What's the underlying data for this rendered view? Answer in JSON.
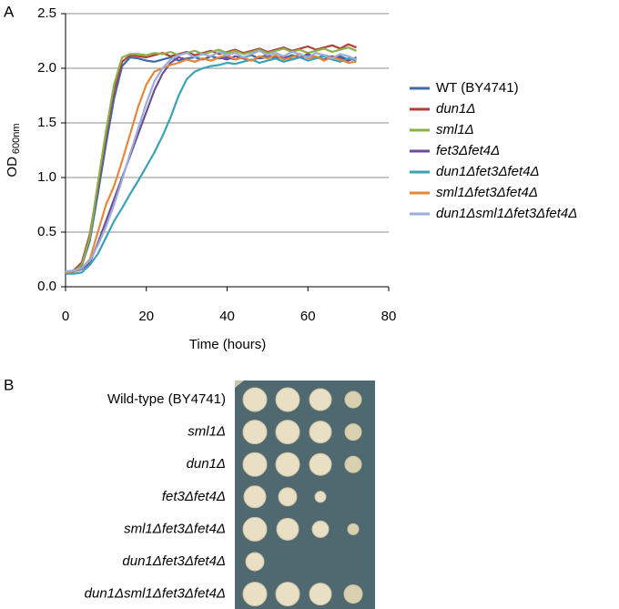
{
  "chart_data": {
    "type": "line",
    "panel_label": "A",
    "xlabel": "Time (hours)",
    "ylabel": "OD",
    "ylabel_subscript": "600nm",
    "x": [
      0,
      2,
      4,
      6,
      8,
      10,
      12,
      14,
      16,
      18,
      20,
      22,
      24,
      26,
      28,
      30,
      32,
      34,
      36,
      38,
      40,
      42,
      44,
      46,
      48,
      50,
      52,
      54,
      56,
      58,
      60,
      62,
      64,
      66,
      68,
      70,
      72
    ],
    "xlim": [
      0,
      80
    ],
    "xticks": [
      0,
      20,
      40,
      60,
      80
    ],
    "ylim": [
      0,
      2.5
    ],
    "yticks": [
      {
        "value": 0,
        "label": "0.0"
      },
      0.5,
      {
        "value": 1,
        "label": "1.0"
      },
      1.5,
      {
        "value": 2,
        "label": "2.0"
      },
      2.5
    ],
    "grid": true,
    "legend": "right",
    "series": [
      {
        "name": "WT (BY4741)",
        "color": "#3d6aa8",
        "values": [
          0.13,
          0.14,
          0.19,
          0.42,
          0.85,
          1.3,
          1.72,
          2.02,
          2.1,
          2.09,
          2.07,
          2.06,
          2.08,
          2.1,
          2.07,
          2.09,
          2.1,
          2.08,
          2.11,
          2.09,
          2.1,
          2.08,
          2.1,
          2.12,
          2.09,
          2.1,
          2.11,
          2.09,
          2.12,
          2.1,
          2.11,
          2.09,
          2.12,
          2.1,
          2.11,
          2.08,
          2.09
        ]
      },
      {
        "name": "dun1Δ",
        "color": "#b33f3a",
        "values": [
          0.13,
          0.15,
          0.22,
          0.48,
          0.92,
          1.38,
          1.8,
          2.06,
          2.12,
          2.11,
          2.1,
          2.12,
          2.14,
          2.11,
          2.13,
          2.15,
          2.12,
          2.14,
          2.16,
          2.13,
          2.15,
          2.17,
          2.14,
          2.16,
          2.18,
          2.15,
          2.17,
          2.19,
          2.16,
          2.18,
          2.2,
          2.17,
          2.19,
          2.21,
          2.18,
          2.22,
          2.19
        ]
      },
      {
        "name": "sml1Δ",
        "color": "#8cb04a",
        "values": [
          0.12,
          0.14,
          0.2,
          0.45,
          0.95,
          1.42,
          1.85,
          2.1,
          2.13,
          2.13,
          2.12,
          2.14,
          2.13,
          2.15,
          2.12,
          2.14,
          2.16,
          2.13,
          2.15,
          2.17,
          2.14,
          2.16,
          2.13,
          2.15,
          2.17,
          2.14,
          2.16,
          2.18,
          2.15,
          2.17,
          2.14,
          2.16,
          2.18,
          2.15,
          2.17,
          2.19,
          2.16
        ]
      },
      {
        "name": "fet3Δfet4Δ",
        "color": "#6c4e98",
        "values": [
          0.13,
          0.14,
          0.16,
          0.22,
          0.4,
          0.6,
          0.8,
          1.0,
          1.2,
          1.4,
          1.6,
          1.8,
          1.95,
          2.05,
          2.1,
          2.08,
          2.06,
          2.09,
          2.07,
          2.1,
          2.08,
          2.11,
          2.09,
          2.07,
          2.1,
          2.12,
          2.09,
          2.11,
          2.08,
          2.1,
          2.13,
          2.1,
          2.08,
          2.11,
          2.09,
          2.07,
          2.1
        ]
      },
      {
        "name": "dun1Δfet3Δfet4Δ",
        "color": "#3aa2b7",
        "values": [
          0.12,
          0.12,
          0.13,
          0.2,
          0.3,
          0.45,
          0.6,
          0.72,
          0.85,
          0.97,
          1.1,
          1.23,
          1.38,
          1.55,
          1.75,
          1.9,
          1.97,
          2.0,
          2.02,
          2.03,
          2.05,
          2.04,
          2.06,
          2.08,
          2.05,
          2.07,
          2.09,
          2.06,
          2.08,
          2.1,
          2.07,
          2.09,
          2.11,
          2.08,
          2.06,
          2.09,
          2.07
        ]
      },
      {
        "name": "sml1Δfet3Δfet4Δ",
        "color": "#e5883a",
        "values": [
          0.13,
          0.14,
          0.17,
          0.25,
          0.5,
          0.75,
          0.92,
          1.15,
          1.4,
          1.65,
          1.85,
          1.97,
          2.0,
          2.03,
          2.05,
          2.08,
          2.06,
          2.09,
          2.07,
          2.1,
          2.12,
          2.08,
          2.1,
          2.07,
          2.11,
          2.09,
          2.12,
          2.08,
          2.1,
          2.13,
          2.09,
          2.11,
          2.07,
          2.1,
          2.08,
          2.05,
          2.06
        ]
      },
      {
        "name": "dun1Δsml1Δfet3Δfet4Δ",
        "color": "#9badda",
        "values": [
          0.14,
          0.15,
          0.17,
          0.24,
          0.38,
          0.55,
          0.75,
          0.98,
          1.22,
          1.45,
          1.68,
          1.88,
          2.0,
          2.08,
          2.12,
          2.14,
          2.1,
          2.13,
          2.11,
          2.15,
          2.12,
          2.14,
          2.1,
          2.13,
          2.16,
          2.12,
          2.14,
          2.11,
          2.15,
          2.13,
          2.1,
          2.14,
          2.12,
          2.09,
          2.13,
          2.11,
          2.08
        ]
      }
    ]
  },
  "spot_assay": {
    "panel_label": "B",
    "strains": [
      "Wild-type (BY4741)",
      "sml1Δ",
      "dun1Δ",
      "fet3Δfet4Δ",
      "sml1Δfet3Δfet4Δ",
      "dun1Δfet3Δfet4Δ",
      "dun1Δsml1Δfet3Δfet4Δ"
    ]
  }
}
